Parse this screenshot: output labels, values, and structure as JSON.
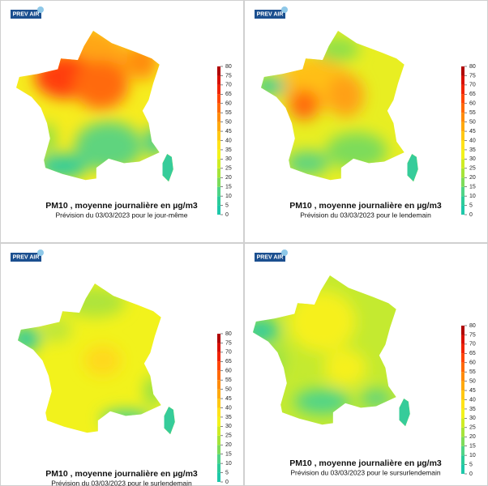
{
  "panels": [
    {
      "logo": "PREV AIR",
      "title": "PM10 , moyenne journalière en µg/m3",
      "subtitle": "Prévision du 03/03/2023 pour le jour-même",
      "colorbar_ticks": [
        0,
        5,
        10,
        15,
        20,
        25,
        30,
        35,
        40,
        45,
        50,
        55,
        60,
        65,
        70,
        75,
        80
      ]
    },
    {
      "logo": "PREV AIR",
      "title": "PM10 , moyenne journalière en µg/m3",
      "subtitle": "Prévision du 03/03/2023 pour le lendemain",
      "colorbar_ticks": [
        0,
        5,
        10,
        15,
        20,
        25,
        30,
        35,
        40,
        45,
        50,
        55,
        60,
        65,
        70,
        75,
        80
      ]
    },
    {
      "logo": "PREV AIR",
      "title": "PM10 , moyenne journalière en µg/m3",
      "subtitle": "Prévision du 03/03/2023 pour le surlendemain",
      "colorbar_ticks": [
        0,
        5,
        10,
        15,
        20,
        25,
        30,
        35,
        40,
        45,
        50,
        55,
        60,
        65,
        70,
        75,
        80
      ]
    },
    {
      "logo": "PREV AIR",
      "title": "PM10 , moyenne journalière en µg/m3",
      "subtitle": "Prévision du 03/03/2023 pour le sursurlendemain",
      "colorbar_ticks": [
        0,
        5,
        10,
        15,
        20,
        25,
        30,
        35,
        40,
        45,
        50,
        55,
        60,
        65,
        70,
        75,
        80
      ]
    }
  ]
}
